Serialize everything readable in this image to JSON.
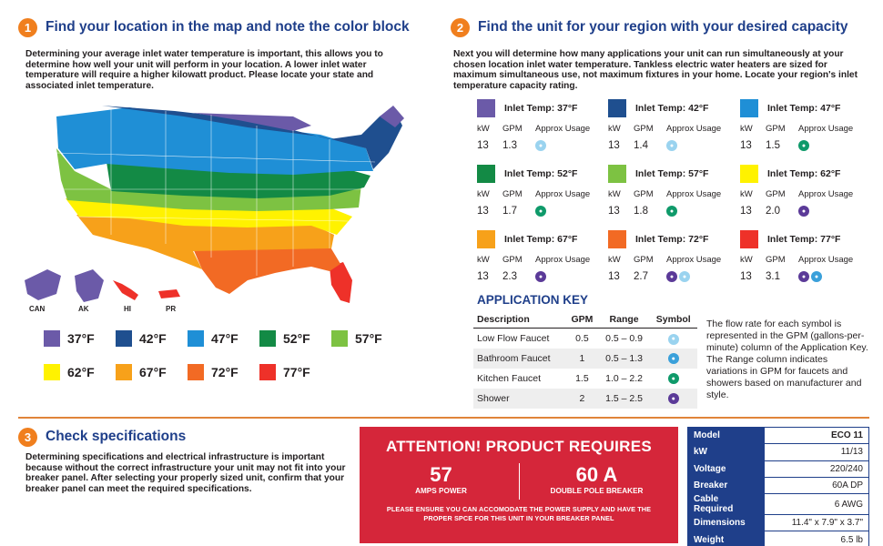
{
  "section1": {
    "number": "1",
    "title": "Find your location in the map and note the color block",
    "text": "Determining your average inlet water temperature is important, this allows you to determine how well your unit will perform in your location. A lower inlet water temperature will require a higher kilowatt product. Please locate your state and associated inlet temperature.",
    "map_labels": [
      "CAN",
      "AK",
      "HI",
      "PR"
    ],
    "legend": [
      {
        "label": "37°F",
        "color": "#6b5aa8"
      },
      {
        "label": "42°F",
        "color": "#1f4f8f"
      },
      {
        "label": "47°F",
        "color": "#1f8fd6"
      },
      {
        "label": "52°F",
        "color": "#138a45"
      },
      {
        "label": "57°F",
        "color": "#7dc242"
      },
      {
        "label": "62°F",
        "color": "#fff200"
      },
      {
        "label": "67°F",
        "color": "#f7a11a"
      },
      {
        "label": "72°F",
        "color": "#f26a24"
      },
      {
        "label": "77°F",
        "color": "#ee3129"
      }
    ]
  },
  "section2": {
    "number": "2",
    "title": "Find the unit for your region with your desired capacity",
    "text": "Next you will determine how many applications your unit can run simultaneously at your chosen location inlet water temperature. Tankless electric water heaters are sized for maximum simultaneous use, not maximum fixtures in your home. Locate your region's inlet temperature capacity rating.",
    "col_headers": {
      "kw": "kW",
      "gpm": "GPM",
      "usage": "Approx Usage"
    },
    "cards": [
      {
        "title": "Inlet Temp: 37°F",
        "color": "#6b5aa8",
        "kw": "13",
        "gpm": "1.3",
        "symbols": [
          "low"
        ]
      },
      {
        "title": "Inlet Temp: 42°F",
        "color": "#1f4f8f",
        "kw": "13",
        "gpm": "1.4",
        "symbols": [
          "low"
        ]
      },
      {
        "title": "Inlet Temp: 47°F",
        "color": "#1f8fd6",
        "kw": "13",
        "gpm": "1.5",
        "symbols": [
          "kit"
        ]
      },
      {
        "title": "Inlet Temp: 52°F",
        "color": "#138a45",
        "kw": "13",
        "gpm": "1.7",
        "symbols": [
          "kit"
        ]
      },
      {
        "title": "Inlet Temp: 57°F",
        "color": "#7dc242",
        "kw": "13",
        "gpm": "1.8",
        "symbols": [
          "kit"
        ]
      },
      {
        "title": "Inlet Temp: 62°F",
        "color": "#fff200",
        "kw": "13",
        "gpm": "2.0",
        "symbols": [
          "show"
        ]
      },
      {
        "title": "Inlet Temp: 67°F",
        "color": "#f7a11a",
        "kw": "13",
        "gpm": "2.3",
        "symbols": [
          "show"
        ]
      },
      {
        "title": "Inlet Temp: 72°F",
        "color": "#f26a24",
        "kw": "13",
        "gpm": "2.7",
        "symbols": [
          "show",
          "low"
        ]
      },
      {
        "title": "Inlet Temp: 77°F",
        "color": "#ee3129",
        "kw": "13",
        "gpm": "3.1",
        "symbols": [
          "show",
          "bath"
        ]
      }
    ],
    "app_key": {
      "title": "APPLICATION KEY",
      "headers": [
        "Description",
        "GPM",
        "Range",
        "Symbol"
      ],
      "rows": [
        {
          "desc": "Low Flow Faucet",
          "gpm": "0.5",
          "range": "0.5 – 0.9",
          "symbol": "low"
        },
        {
          "desc": "Bathroom Faucet",
          "gpm": "1",
          "range": "0.5 – 1.3",
          "symbol": "bath"
        },
        {
          "desc": "Kitchen Faucet",
          "gpm": "1.5",
          "range": "1.0 – 2.2",
          "symbol": "kit"
        },
        {
          "desc": "Shower",
          "gpm": "2",
          "range": "1.5 – 2.5",
          "symbol": "show"
        }
      ],
      "note": "The flow rate for each symbol is represented in the GPM (gallons-per-minute) column of the Application Key. The Range column indicates variations in GPM for faucets and showers based on manufacturer and style."
    }
  },
  "section3": {
    "number": "3",
    "title": "Check specifications",
    "text": "Determining specifications and electrical infrastructure is important because without the correct infrastructure your unit may not fit into your breaker panel. After selecting your properly sized unit, confirm that your breaker panel can meet the required specifications.",
    "attention": {
      "title": "ATTENTION! PRODUCT REQUIRES",
      "amps_value": "57",
      "amps_label": "AMPS POWER",
      "breaker_value": "60 A",
      "breaker_label": "DOUBLE POLE BREAKER",
      "fine": "PLEASE ENSURE YOU CAN ACCOMODATE THE POWER SUPPLY AND HAVE THE PROPER SPCE FOR THIS UNIT IN YOUR BREAKER PANEL"
    },
    "specs": [
      {
        "key": "Model",
        "value": "ECO 11"
      },
      {
        "key": "kW",
        "value": "11/13"
      },
      {
        "key": "Voltage",
        "value": "220/240"
      },
      {
        "key": "Breaker",
        "value": "60A DP"
      },
      {
        "key": "Cable Required",
        "value": "6 AWG"
      },
      {
        "key": "Dimensions",
        "value": "11.4\" x 7.9\" x 3.7\""
      },
      {
        "key": "Weight",
        "value": "6.5 lb"
      }
    ]
  }
}
